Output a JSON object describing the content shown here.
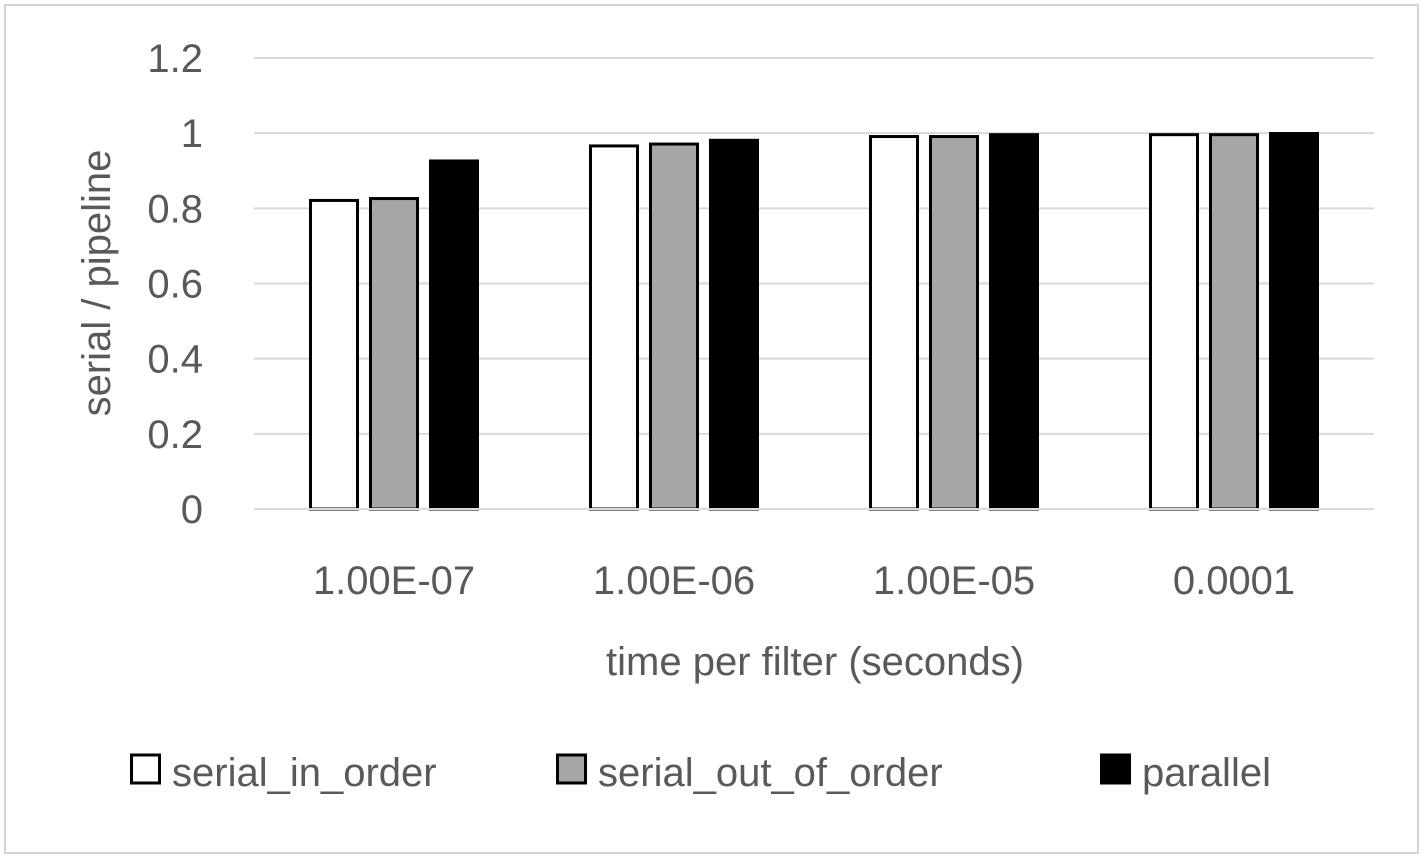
{
  "chart_data": {
    "type": "bar",
    "title": "",
    "xlabel": "time per filter (seconds)",
    "ylabel": "serial / pipeline",
    "categories": [
      "1.00E-07",
      "1.00E-06",
      "1.00E-05",
      "0.0001"
    ],
    "ylim": [
      0,
      1.2
    ],
    "yticks": [
      "0",
      "0.2",
      "0.4",
      "0.6",
      "0.8",
      "1",
      "1.2"
    ],
    "grid": true,
    "legend_position": "bottom",
    "series": [
      {
        "name": "serial_in_order",
        "color": "#ffffff",
        "values": [
          0.825,
          0.97,
          0.995,
          1.0
        ]
      },
      {
        "name": "serial_out_of_order",
        "color": "#a6a6a6",
        "values": [
          0.83,
          0.975,
          0.995,
          1.0
        ]
      },
      {
        "name": "parallel",
        "color": "#000000",
        "values": [
          0.93,
          0.985,
          1.0,
          1.003
        ]
      }
    ]
  }
}
